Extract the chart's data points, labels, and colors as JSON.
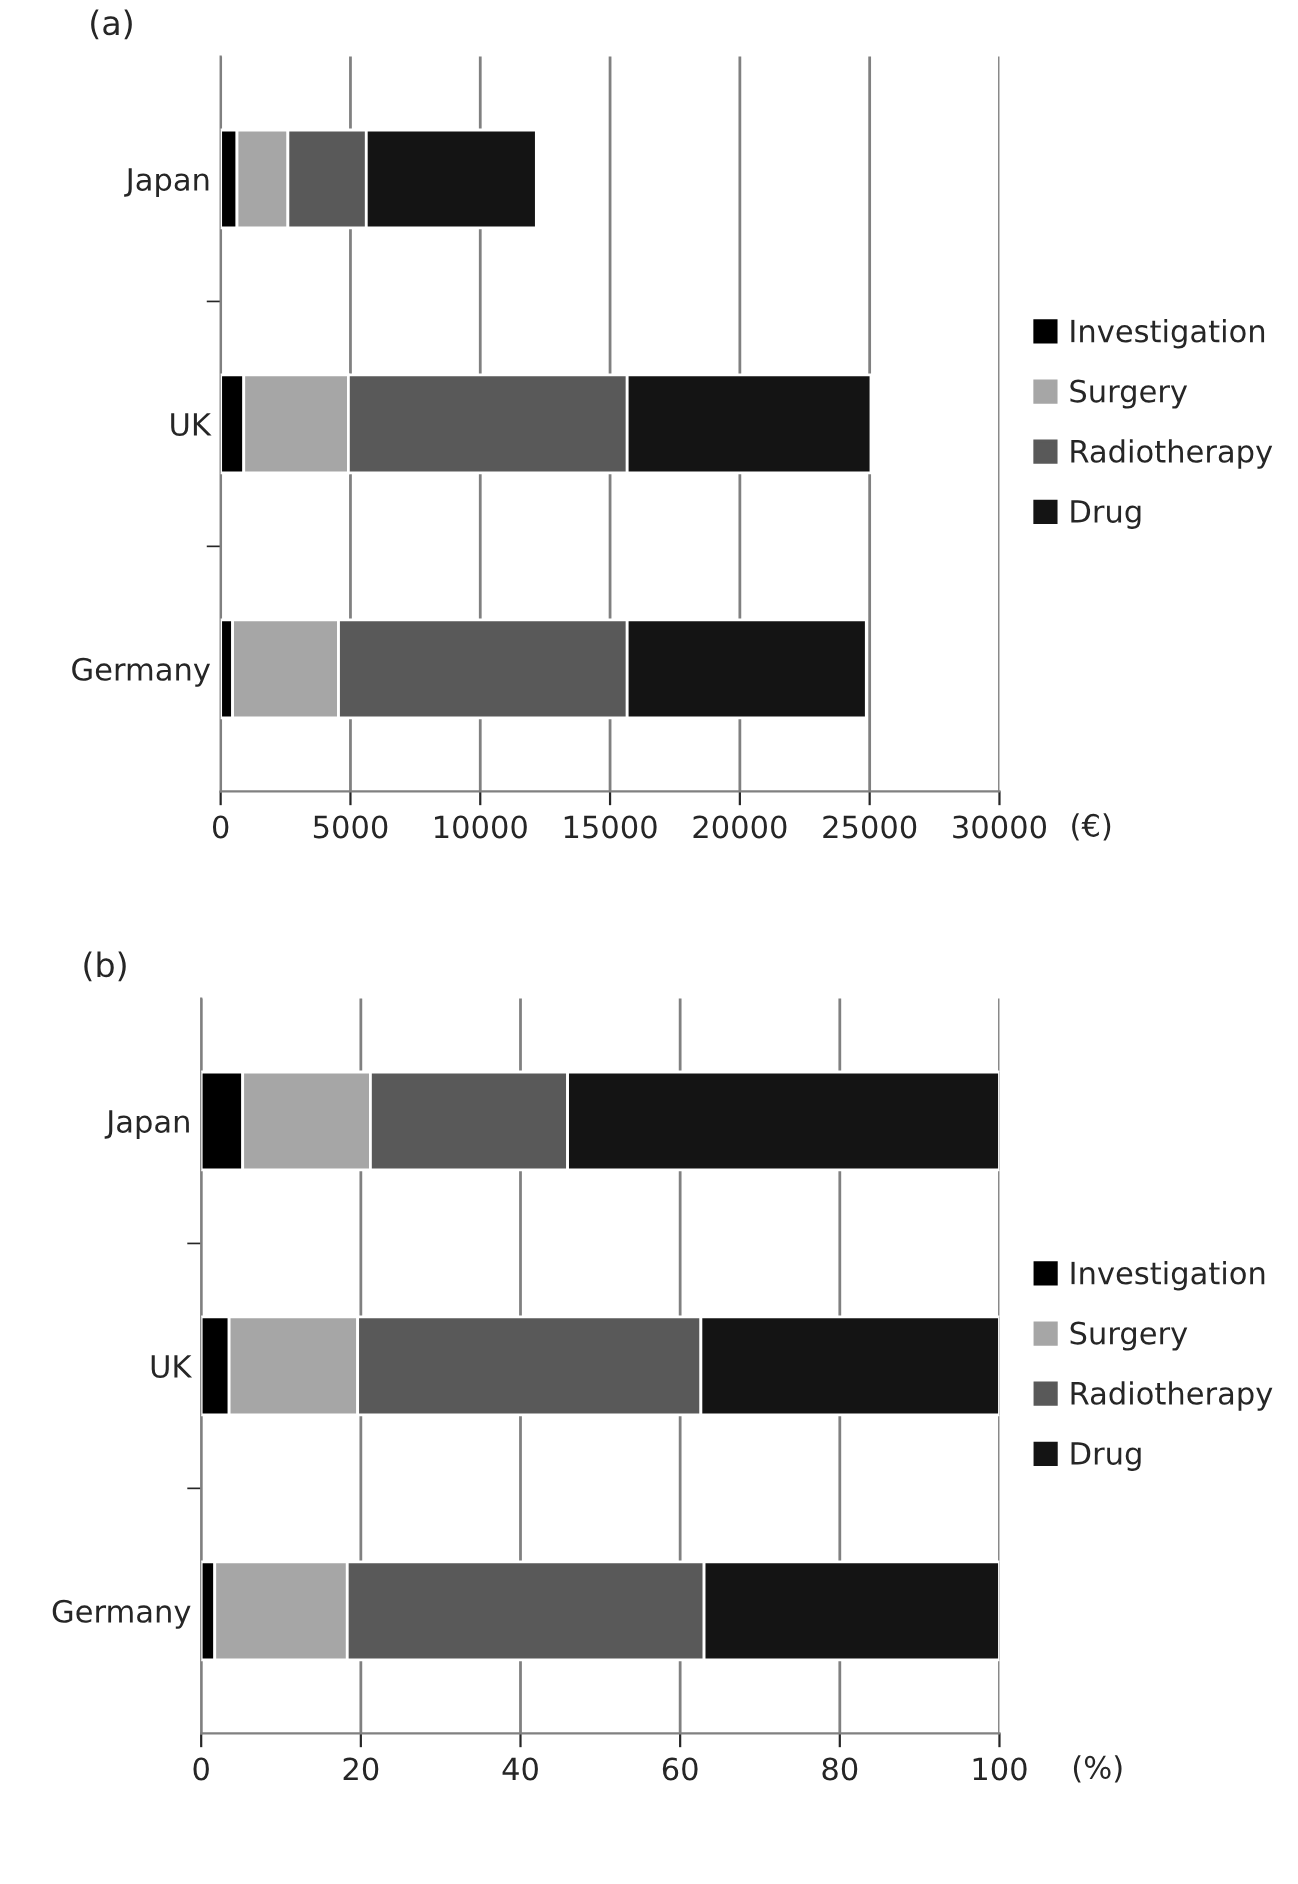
{
  "chart_data": [
    {
      "type": "bar",
      "title": "(a)",
      "orientation": "horizontal",
      "stacked": true,
      "categories": [
        "Japan",
        "UK",
        "Germany"
      ],
      "xlabel": "(€)",
      "series": [
        {
          "name": "Investigation",
          "color": "#000000",
          "values": [
            630,
            890,
            460
          ]
        },
        {
          "name": "Surgery",
          "color": "#a6a6a6",
          "values": [
            1960,
            4030,
            4080
          ]
        },
        {
          "name": "Radiotherapy",
          "color": "#595959",
          "values": [
            3020,
            10740,
            11120
          ]
        },
        {
          "name": "Drug",
          "color": "#141414",
          "values": [
            6550,
            9390,
            9210
          ]
        }
      ],
      "xlim": [
        0,
        30000
      ],
      "xticks": [
        0,
        5000,
        10000,
        15000,
        20000,
        25000,
        30000
      ],
      "grid": "x",
      "legend": "right"
    },
    {
      "type": "bar",
      "title": "(b)",
      "orientation": "horizontal",
      "stacked": true,
      "categories": [
        "Japan",
        "UK",
        "Germany"
      ],
      "xlabel": "(%)",
      "series": [
        {
          "name": "Investigation",
          "color": "#000000",
          "values": [
            5.2,
            3.5,
            1.7
          ]
        },
        {
          "name": "Surgery",
          "color": "#a6a6a6",
          "values": [
            16.0,
            16.1,
            16.6
          ]
        },
        {
          "name": "Radiotherapy",
          "color": "#595959",
          "values": [
            24.7,
            43.0,
            44.7
          ]
        },
        {
          "name": "Drug",
          "color": "#141414",
          "values": [
            54.1,
            37.4,
            37.0
          ]
        }
      ],
      "xlim": [
        0,
        100
      ],
      "xticks": [
        0,
        20,
        40,
        60,
        80,
        100
      ],
      "grid": "x",
      "legend": "right"
    }
  ]
}
